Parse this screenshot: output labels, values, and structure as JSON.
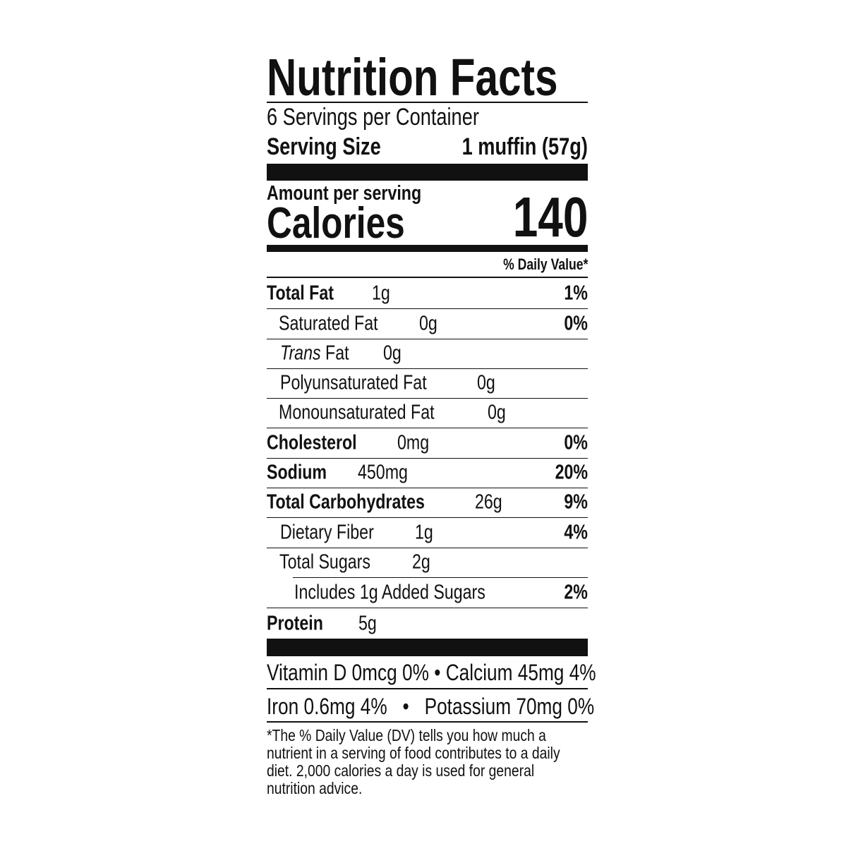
{
  "title": "Nutrition Facts",
  "servings_per_container": "6 Servings per Container",
  "serving_size": {
    "label": "Serving Size",
    "value": "1 muffin (57g)"
  },
  "amount_per_serving": "Amount per serving",
  "calories": {
    "label": "Calories",
    "value": "140"
  },
  "daily_value_header": "% Daily Value*",
  "nutrients": [
    {
      "label": "Total Fat",
      "amount": "1g",
      "dv": "1%"
    },
    {
      "label": "Saturated Fat",
      "amount": "0g",
      "dv": "0%"
    },
    {
      "label_italic": "Trans",
      "label": " Fat",
      "amount": "0g",
      "dv": ""
    },
    {
      "label": "Polyunsaturated Fat",
      "amount": "0g",
      "dv": ""
    },
    {
      "label": "Monounsaturated Fat",
      "amount": "0g",
      "dv": ""
    },
    {
      "label": "Cholesterol",
      "amount": "0mg",
      "dv": "0%"
    },
    {
      "label": "Sodium",
      "amount": "450mg",
      "dv": "20%"
    },
    {
      "label": "Total Carbohydrates",
      "amount": "26g",
      "dv": "9%"
    },
    {
      "label": "Dietary Fiber",
      "amount": "1g",
      "dv": "4%"
    },
    {
      "label": "Total Sugars",
      "amount": "2g",
      "dv": ""
    },
    {
      "label": "Includes 1g Added Sugars",
      "amount": "",
      "dv": "2%"
    },
    {
      "label": "Protein",
      "amount": "5g",
      "dv": ""
    }
  ],
  "vitamins": [
    "Vitamin D 0mcg 0% • Calcium 45mg 4%",
    "Iron 0.6mg 4%   •   Potassium 70mg 0%"
  ],
  "footnote": [
    "*The % Daily Value (DV) tells you how much a",
    "nutrient in a serving of food contributes to a daily",
    "diet. 2,000 calories a day is used for general",
    "nutrition advice."
  ]
}
